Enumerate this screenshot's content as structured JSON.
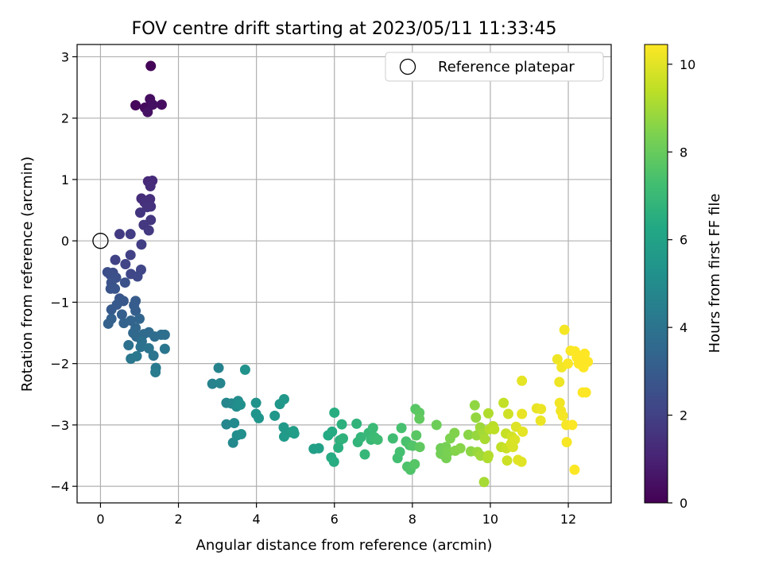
{
  "chart_data": {
    "type": "scatter",
    "title": "FOV centre drift starting at 2023/05/11 11:33:45",
    "xlabel": "Angular distance from reference (arcmin)",
    "ylabel": "Rotation from reference (arcmin)",
    "xlim": [
      -0.6,
      13.1
    ],
    "ylim": [
      -4.27,
      3.2
    ],
    "xticks": [
      0,
      2,
      4,
      6,
      8,
      10,
      12
    ],
    "yticks": [
      -4,
      -3,
      -2,
      -1,
      0,
      1,
      2,
      3
    ],
    "grid": true,
    "legend": {
      "position": "top-right",
      "entries": [
        "Reference platepar"
      ]
    },
    "reference_point": {
      "x": 0,
      "y": 0
    },
    "colorbar": {
      "label": "Hours from first FF file",
      "min": 0,
      "max": 10.45,
      "ticks": [
        0,
        2,
        4,
        6,
        8,
        10
      ],
      "colormap": "viridis"
    },
    "points": [
      [
        1.29,
        2.85,
        0.1
      ],
      [
        0.9,
        2.21,
        0.2
      ],
      [
        1.14,
        2.17,
        0.3
      ],
      [
        1.27,
        2.31,
        0.35
      ],
      [
        1.57,
        2.22,
        0.4
      ],
      [
        1.21,
        2.1,
        0.5
      ],
      [
        1.34,
        2.22,
        0.45
      ],
      [
        1.22,
        0.97,
        1.2
      ],
      [
        1.33,
        0.98,
        1.25
      ],
      [
        1.28,
        0.89,
        1.3
      ],
      [
        1.05,
        0.69,
        1.35
      ],
      [
        1.27,
        0.68,
        1.4
      ],
      [
        1.13,
        0.63,
        1.45
      ],
      [
        1.29,
        0.56,
        1.5
      ],
      [
        1.2,
        0.55,
        1.55
      ],
      [
        1.02,
        0.46,
        1.6
      ],
      [
        1.29,
        0.34,
        1.65
      ],
      [
        1.11,
        0.26,
        1.7
      ],
      [
        1.24,
        0.17,
        1.75
      ],
      [
        0.49,
        0.11,
        1.8
      ],
      [
        0.77,
        0.11,
        1.85
      ],
      [
        1.05,
        -0.06,
        1.9
      ],
      [
        0.77,
        -0.23,
        2.0
      ],
      [
        0.38,
        -0.31,
        2.05
      ],
      [
        0.64,
        -0.38,
        2.1
      ],
      [
        1.04,
        -0.47,
        2.15
      ],
      [
        0.78,
        -0.54,
        2.2
      ],
      [
        0.95,
        -0.58,
        2.25
      ],
      [
        0.32,
        -0.52,
        2.4
      ],
      [
        0.18,
        -0.51,
        2.45
      ],
      [
        0.25,
        -0.55,
        2.5
      ],
      [
        0.4,
        -0.6,
        2.55
      ],
      [
        0.63,
        -0.68,
        2.6
      ],
      [
        0.28,
        -0.68,
        2.65
      ],
      [
        0.26,
        -0.78,
        2.7
      ],
      [
        0.37,
        -0.78,
        2.75
      ],
      [
        0.49,
        -0.94,
        2.8
      ],
      [
        0.59,
        -0.98,
        2.85
      ],
      [
        0.42,
        -1.04,
        2.9
      ],
      [
        0.28,
        -1.12,
        2.95
      ],
      [
        0.9,
        -0.98,
        3.0
      ],
      [
        0.86,
        -1.05,
        3.05
      ],
      [
        0.9,
        -1.14,
        3.1
      ],
      [
        0.55,
        -1.2,
        3.15
      ],
      [
        0.28,
        -1.27,
        3.2
      ],
      [
        0.2,
        -1.35,
        3.25
      ],
      [
        0.6,
        -1.34,
        3.3
      ],
      [
        0.78,
        -1.3,
        3.35
      ],
      [
        1.0,
        -1.27,
        3.4
      ],
      [
        0.9,
        -1.42,
        3.45
      ],
      [
        0.84,
        -1.5,
        3.5
      ],
      [
        0.92,
        -1.56,
        3.55
      ],
      [
        1.11,
        -1.52,
        3.6
      ],
      [
        1.24,
        -1.49,
        3.65
      ],
      [
        1.39,
        -1.56,
        3.7
      ],
      [
        1.56,
        -1.53,
        3.75
      ],
      [
        1.65,
        -1.53,
        3.8
      ],
      [
        1.06,
        -1.64,
        3.85
      ],
      [
        0.72,
        -1.7,
        3.9
      ],
      [
        1.03,
        -1.73,
        3.95
      ],
      [
        1.24,
        -1.75,
        4.0
      ],
      [
        1.36,
        -1.87,
        4.05
      ],
      [
        1.65,
        -1.76,
        4.1
      ],
      [
        0.78,
        -1.92,
        4.15
      ],
      [
        0.93,
        -1.88,
        4.2
      ],
      [
        1.42,
        -2.07,
        4.25
      ],
      [
        1.41,
        -2.14,
        4.3
      ],
      [
        2.87,
        -2.33,
        4.6
      ],
      [
        3.03,
        -2.07,
        4.65
      ],
      [
        3.07,
        -2.32,
        4.7
      ],
      [
        3.23,
        -2.64,
        4.75
      ],
      [
        3.23,
        -2.99,
        4.8
      ],
      [
        3.36,
        -2.65,
        4.85
      ],
      [
        3.4,
        -3.29,
        4.9
      ],
      [
        3.43,
        -2.97,
        4.95
      ],
      [
        3.49,
        -2.7,
        5.0
      ],
      [
        3.53,
        -2.61,
        5.05
      ],
      [
        3.5,
        -3.17,
        5.1
      ],
      [
        3.61,
        -3.15,
        5.15
      ],
      [
        3.59,
        -2.67,
        5.2
      ],
      [
        3.71,
        -2.1,
        5.25
      ],
      [
        3.99,
        -2.64,
        5.3
      ],
      [
        3.99,
        -2.82,
        5.35
      ],
      [
        4.06,
        -2.89,
        5.4
      ],
      [
        4.47,
        -2.85,
        5.45
      ],
      [
        4.6,
        -2.66,
        5.5
      ],
      [
        4.71,
        -2.58,
        5.55
      ],
      [
        4.7,
        -3.04,
        5.6
      ],
      [
        4.71,
        -3.19,
        5.65
      ],
      [
        4.88,
        -3.12,
        5.7
      ],
      [
        4.95,
        -3.1,
        5.75
      ],
      [
        4.97,
        -3.14,
        5.8
      ],
      [
        5.47,
        -3.39,
        5.85
      ],
      [
        5.6,
        -3.38,
        5.9
      ],
      [
        5.84,
        -3.17,
        6.3
      ],
      [
        5.94,
        -3.11,
        6.35
      ],
      [
        5.92,
        -3.53,
        6.4
      ],
      [
        5.99,
        -3.6,
        6.45
      ],
      [
        6.0,
        -2.8,
        6.5
      ],
      [
        6.1,
        -3.37,
        6.55
      ],
      [
        6.19,
        -2.99,
        6.6
      ],
      [
        6.14,
        -3.25,
        6.65
      ],
      [
        6.22,
        -3.22,
        6.7
      ],
      [
        6.57,
        -2.98,
        6.75
      ],
      [
        6.6,
        -3.28,
        6.8
      ],
      [
        6.68,
        -3.2,
        6.85
      ],
      [
        6.78,
        -3.48,
        6.9
      ],
      [
        6.88,
        -3.13,
        6.95
      ],
      [
        6.94,
        -3.24,
        7.0
      ],
      [
        6.99,
        -3.05,
        7.05
      ],
      [
        7.03,
        -3.2,
        7.1
      ],
      [
        7.11,
        -3.24,
        7.15
      ],
      [
        7.5,
        -3.22,
        7.2
      ],
      [
        7.62,
        -3.54,
        7.25
      ],
      [
        7.68,
        -3.44,
        7.3
      ],
      [
        7.72,
        -3.05,
        7.35
      ],
      [
        7.84,
        -3.27,
        7.4
      ],
      [
        7.93,
        -3.33,
        7.45
      ],
      [
        7.87,
        -3.68,
        7.5
      ],
      [
        7.95,
        -3.73,
        7.55
      ],
      [
        8.01,
        -3.34,
        7.6
      ],
      [
        8.06,
        -3.64,
        7.65
      ],
      [
        8.08,
        -2.74,
        7.7
      ],
      [
        8.1,
        -3.17,
        7.75
      ],
      [
        8.18,
        -2.8,
        7.8
      ],
      [
        8.19,
        -3.36,
        7.85
      ],
      [
        8.18,
        -2.9,
        7.9
      ],
      [
        8.62,
        -3.0,
        8.1
      ],
      [
        8.73,
        -3.38,
        8.15
      ],
      [
        8.73,
        -3.47,
        8.2
      ],
      [
        8.86,
        -3.36,
        8.25
      ],
      [
        8.87,
        -3.54,
        8.3
      ],
      [
        8.92,
        -3.44,
        8.35
      ],
      [
        8.97,
        -3.22,
        8.4
      ],
      [
        9.08,
        -3.13,
        8.45
      ],
      [
        9.1,
        -3.42,
        8.5
      ],
      [
        9.23,
        -3.38,
        8.55
      ],
      [
        9.44,
        -3.16,
        8.6
      ],
      [
        9.5,
        -3.43,
        8.65
      ],
      [
        9.6,
        -2.68,
        8.7
      ],
      [
        9.63,
        -2.88,
        8.75
      ],
      [
        9.65,
        -3.17,
        8.8
      ],
      [
        9.67,
        -3.44,
        8.85
      ],
      [
        9.74,
        -3.04,
        8.9
      ],
      [
        9.75,
        -3.5,
        8.95
      ],
      [
        9.82,
        -3.13,
        9.0
      ],
      [
        9.84,
        -3.93,
        9.05
      ],
      [
        9.86,
        -3.23,
        9.1
      ],
      [
        9.93,
        -3.54,
        9.15
      ],
      [
        9.95,
        -2.81,
        9.2
      ],
      [
        9.95,
        -3.5,
        9.25
      ],
      [
        9.98,
        -3.07,
        9.3
      ],
      [
        10.07,
        -3.02,
        9.35
      ],
      [
        10.1,
        -3.07,
        9.4
      ],
      [
        10.28,
        -3.36,
        9.45
      ],
      [
        10.34,
        -2.64,
        9.5
      ],
      [
        10.4,
        -3.14,
        9.55
      ],
      [
        10.41,
        -3.38,
        9.6
      ],
      [
        10.43,
        -3.58,
        9.65
      ],
      [
        10.46,
        -2.82,
        9.7
      ],
      [
        10.55,
        -3.19,
        9.75
      ],
      [
        10.53,
        -3.31,
        9.8
      ],
      [
        10.58,
        -3.36,
        9.85
      ],
      [
        10.63,
        -3.24,
        9.9
      ],
      [
        10.66,
        -3.03,
        9.95
      ],
      [
        10.71,
        -3.57,
        10.0
      ],
      [
        10.8,
        -3.6,
        10.0
      ],
      [
        10.81,
        -2.28,
        10.05
      ],
      [
        10.83,
        -3.11,
        10.05
      ],
      [
        10.81,
        -2.82,
        10.1
      ],
      [
        11.19,
        -2.73,
        10.1
      ],
      [
        11.29,
        -2.93,
        10.15
      ],
      [
        11.3,
        -2.74,
        10.15
      ],
      [
        11.72,
        -1.93,
        10.2
      ],
      [
        11.77,
        -2.3,
        10.2
      ],
      [
        11.78,
        -2.64,
        10.25
      ],
      [
        11.81,
        -2.77,
        10.25
      ],
      [
        11.83,
        -2.06,
        10.28
      ],
      [
        11.86,
        -2.85,
        10.3
      ],
      [
        11.9,
        -1.45,
        10.32
      ],
      [
        11.95,
        -3.0,
        10.34
      ],
      [
        11.96,
        -3.28,
        10.36
      ],
      [
        11.99,
        -2.0,
        10.38
      ],
      [
        12.06,
        -1.79,
        10.4
      ],
      [
        12.1,
        -3.0,
        10.42
      ],
      [
        12.16,
        -3.73,
        10.44
      ],
      [
        12.17,
        -1.8,
        10.43
      ],
      [
        12.22,
        -1.9,
        10.45
      ],
      [
        12.27,
        -2.0,
        10.45
      ],
      [
        12.32,
        -1.88,
        10.45
      ],
      [
        12.35,
        -1.95,
        10.45
      ],
      [
        12.37,
        -2.47,
        10.45
      ],
      [
        12.39,
        -2.06,
        10.45
      ],
      [
        12.42,
        -1.84,
        10.45
      ],
      [
        12.45,
        -2.47,
        10.45
      ],
      [
        12.5,
        -1.97,
        10.45
      ]
    ]
  }
}
